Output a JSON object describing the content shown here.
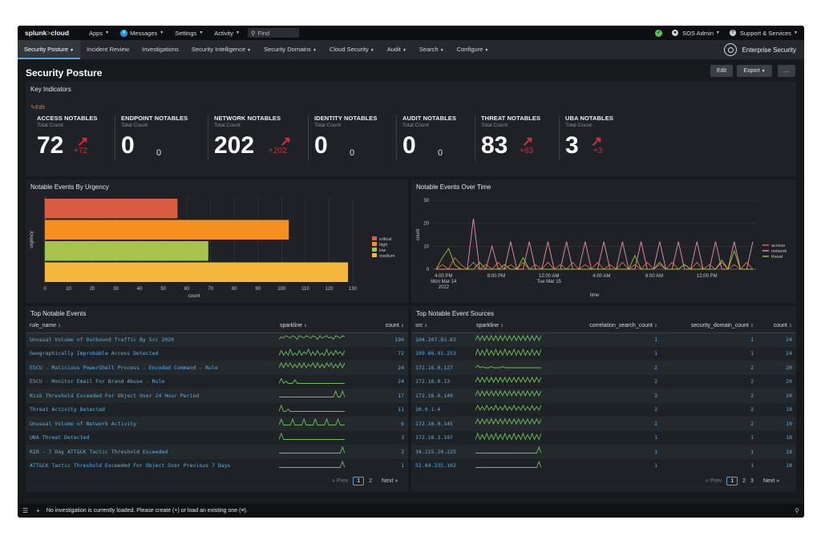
{
  "topbar": {
    "logo_main": "splunk",
    "logo_gt": ">",
    "logo_cloud": "cloud",
    "apps": "Apps",
    "messages_count": "4",
    "messages": "Messages",
    "settings": "Settings",
    "activity": "Activity",
    "find_placeholder": "Find",
    "user": "SOS Admin",
    "support": "Support & Services"
  },
  "nav": {
    "items": [
      "Security Posture",
      "Incident Review",
      "Investigations",
      "Security Intelligence",
      "Security Domains",
      "Cloud Security",
      "Audit",
      "Search",
      "Configure"
    ],
    "brand": "Enterprise Security"
  },
  "page": {
    "title": "Security Posture",
    "edit_button": "Edit",
    "export_button": "Export",
    "more_button": "..."
  },
  "key_indicators": {
    "title": "Key Indicators",
    "edit_link": "Edit",
    "items": [
      {
        "name": "ACCESS NOTABLES",
        "sub": "Total Count",
        "value": "72",
        "delta": "+72",
        "trend": "up"
      },
      {
        "name": "ENDPOINT NOTABLES",
        "sub": "Total Count",
        "value": "0",
        "delta": "0",
        "trend": "none"
      },
      {
        "name": "NETWORK NOTABLES",
        "sub": "Total Count",
        "value": "202",
        "delta": "+202",
        "trend": "up"
      },
      {
        "name": "IDENTITY NOTABLES",
        "sub": "Total Count",
        "value": "0",
        "delta": "0",
        "trend": "none"
      },
      {
        "name": "AUDIT NOTABLES",
        "sub": "Total Count",
        "value": "0",
        "delta": "0",
        "trend": "none"
      },
      {
        "name": "THREAT NOTABLES",
        "sub": "Total Count",
        "value": "83",
        "delta": "+83",
        "trend": "up"
      },
      {
        "name": "UBA NOTABLES",
        "sub": "Total Count",
        "value": "3",
        "delta": "+3",
        "trend": "up"
      }
    ]
  },
  "chart_data": [
    {
      "type": "bar",
      "orientation": "horizontal",
      "title": "Notable Events By Urgency",
      "xlabel": "count",
      "ylabel": "urgency",
      "xlim": [
        0,
        130
      ],
      "xticks": [
        "0",
        "10",
        "20",
        "30",
        "40",
        "50",
        "60",
        "70",
        "80",
        "90",
        "100",
        "110",
        "120",
        "130"
      ],
      "categories": [
        "critical",
        "high",
        "low",
        "medium"
      ],
      "values": [
        56,
        103,
        69,
        128
      ],
      "colors": [
        "#d85d43",
        "#f58f1f",
        "#a7c44d",
        "#f2b73b"
      ],
      "legend": "right",
      "grid": true
    },
    {
      "type": "line",
      "title": "Notable Events Over Time",
      "xlabel": "time",
      "ylabel": "count",
      "ylim": [
        0,
        30
      ],
      "yticks": [
        "0",
        "10",
        "20",
        "30"
      ],
      "xticks": [
        {
          "label": "4:00 PM",
          "sub1": "Mon Mar 14",
          "sub2": "2022",
          "pos": 0.033
        },
        {
          "label": "8:00 PM",
          "sub1": "",
          "sub2": "",
          "pos": 0.196
        },
        {
          "label": "12:00 AM",
          "sub1": "Tue Mar 15",
          "sub2": "",
          "pos": 0.359
        },
        {
          "label": "4:00 AM",
          "sub1": "",
          "sub2": "",
          "pos": 0.522
        },
        {
          "label": "8:00 AM",
          "sub1": "",
          "sub2": "",
          "pos": 0.685
        },
        {
          "label": "12:00 PM",
          "sub1": "",
          "sub2": "",
          "pos": 0.848
        }
      ],
      "legend": "right",
      "series": [
        {
          "name": "access",
          "color": "#e8664a",
          "values": [
            0,
            2,
            0,
            5,
            2,
            0,
            3,
            0,
            2,
            0,
            3,
            0,
            2,
            0,
            3,
            0,
            2,
            0,
            3,
            0,
            2,
            0,
            3,
            0,
            2,
            0,
            3,
            0,
            2,
            0,
            3,
            0,
            2,
            0,
            3,
            0,
            2,
            0,
            3,
            0,
            2,
            0,
            3,
            0,
            2,
            0,
            3,
            0,
            2,
            0,
            3,
            0
          ]
        },
        {
          "name": "network",
          "color": "#f08fa0",
          "values": [
            0,
            0,
            0,
            0,
            0,
            0,
            22,
            0,
            0,
            10,
            0,
            0,
            12,
            0,
            0,
            12,
            0,
            0,
            12,
            0,
            0,
            12,
            0,
            0,
            12,
            0,
            0,
            12,
            0,
            0,
            12,
            0,
            0,
            12,
            0,
            0,
            12,
            0,
            0,
            12,
            0,
            0,
            12,
            0,
            0,
            12,
            0,
            0,
            12,
            0,
            0,
            12
          ]
        },
        {
          "name": "threat",
          "color": "#9bc23c",
          "values": [
            0,
            5,
            9,
            2,
            0,
            0,
            0,
            3,
            0,
            0,
            0,
            2,
            0,
            0,
            5,
            0,
            0,
            0,
            0,
            0,
            0,
            0,
            0,
            0,
            0,
            0,
            0,
            0,
            0,
            0,
            0,
            0,
            6,
            0,
            0,
            0,
            3,
            0,
            0,
            0,
            2,
            0,
            0,
            0,
            0,
            0,
            4,
            0,
            8,
            0,
            0,
            0
          ]
        }
      ]
    }
  ],
  "top_notable_events": {
    "title": "Top Notable Events",
    "columns": [
      "rule_name",
      "sparkline",
      "count"
    ],
    "rows": [
      {
        "rule_name": "Unusual Volume of Outbound Traffic By Src 2020",
        "count": "196",
        "spark": [
          3,
          5,
          4,
          6,
          5,
          4,
          6,
          5,
          3,
          6,
          5,
          4,
          6,
          5,
          4,
          6,
          5,
          3,
          6,
          4,
          5,
          6,
          4,
          5,
          3,
          6,
          5,
          4,
          6,
          5
        ]
      },
      {
        "rule_name": "Geographically Improbable Access Detected",
        "count": "72",
        "spark": [
          1,
          5,
          1,
          4,
          1,
          6,
          1,
          3,
          1,
          5,
          1,
          4,
          2,
          6,
          1,
          4,
          1,
          5,
          1,
          3,
          1,
          6,
          1,
          4,
          1,
          5,
          2,
          4,
          1,
          5
        ]
      },
      {
        "rule_name": "ESCU - Malicious PowerShell Process - Encoded Command - Rule",
        "count": "24",
        "spark": [
          2,
          6,
          2,
          6,
          3,
          6,
          2,
          5,
          2,
          6,
          2,
          6,
          2,
          5,
          3,
          6,
          2,
          6,
          2,
          5,
          2,
          6,
          3,
          6,
          2,
          5,
          2,
          6,
          2,
          6
        ]
      },
      {
        "rule_name": "ESCU - Monitor Email For Brand Abuse - Rule",
        "count": "24",
        "spark": [
          1,
          5,
          1,
          3,
          1,
          1,
          1,
          4,
          1,
          1,
          1,
          1,
          1,
          1,
          1,
          1,
          1,
          1,
          1,
          1,
          1,
          1,
          1,
          1,
          1,
          1,
          1,
          1,
          1,
          1
        ]
      },
      {
        "rule_name": "Risk Threshold Exceeded For Object Over 24 Hour Period",
        "count": "17",
        "spark": [
          1,
          1,
          1,
          1,
          1,
          1,
          1,
          1,
          1,
          1,
          1,
          1,
          1,
          1,
          1,
          1,
          1,
          1,
          1,
          1,
          1,
          1,
          1,
          1,
          1,
          6,
          1,
          1,
          6,
          1
        ]
      },
      {
        "rule_name": "Threat Activity Detected",
        "count": "11",
        "spark": [
          1,
          6,
          1,
          1,
          3,
          1,
          1,
          1,
          1,
          1,
          1,
          1,
          1,
          1,
          1,
          1,
          1,
          1,
          1,
          1,
          1,
          1,
          1,
          1,
          1,
          1,
          1,
          1,
          1,
          1
        ]
      },
      {
        "rule_name": "Unusual Volume of Network Activity",
        "count": "6",
        "spark": [
          1,
          6,
          1,
          1,
          1,
          1,
          6,
          1,
          1,
          1,
          1,
          6,
          1,
          1,
          1,
          1,
          6,
          1,
          1,
          1,
          1,
          6,
          1,
          1,
          1,
          1,
          6,
          1,
          1,
          1
        ]
      },
      {
        "rule_name": "UBA Threat Detected",
        "count": "3",
        "spark": [
          1,
          6,
          1,
          1,
          1,
          1,
          1,
          1,
          1,
          1,
          1,
          1,
          1,
          1,
          1,
          1,
          1,
          1,
          1,
          1,
          1,
          1,
          1,
          1,
          1,
          1,
          1,
          1,
          1,
          1
        ]
      },
      {
        "rule_name": "RIR - 7 Day ATT&CK Tactic Threshold Exceeded",
        "count": "2",
        "spark": [
          1,
          1,
          1,
          1,
          1,
          1,
          1,
          1,
          1,
          1,
          1,
          1,
          1,
          1,
          1,
          1,
          1,
          1,
          1,
          1,
          1,
          1,
          1,
          1,
          1,
          1,
          1,
          1,
          6,
          1
        ]
      },
      {
        "rule_name": "ATT&CK Tactic Threshold Exceeded For Object Over Previous 7 Days",
        "count": "1",
        "spark": [
          1,
          1,
          1,
          1,
          1,
          1,
          1,
          1,
          1,
          1,
          1,
          1,
          1,
          1,
          1,
          1,
          1,
          1,
          1,
          1,
          1,
          1,
          1,
          1,
          1,
          1,
          1,
          1,
          6,
          1
        ]
      }
    ],
    "pager": {
      "prev": "« Prev",
      "pages": [
        "1",
        "2"
      ],
      "current": "1",
      "next": "Next »"
    }
  },
  "top_notable_sources": {
    "title": "Top Notable Event Sources",
    "columns": [
      "src",
      "sparkline",
      "correlation_search_count",
      "security_domain_count",
      "count"
    ],
    "rows": [
      {
        "src": "104.207.83.63",
        "corr": "1",
        "dom": "1",
        "count": "24",
        "spark": [
          2,
          6,
          2,
          6,
          2,
          6,
          2,
          6,
          2,
          6,
          2,
          6,
          2,
          6,
          2,
          6,
          2,
          6,
          2,
          6,
          2,
          6,
          2,
          6,
          2,
          6,
          2,
          6,
          2,
          6
        ]
      },
      {
        "src": "199.66.91.253",
        "corr": "1",
        "dom": "1",
        "count": "24",
        "spark": [
          1,
          6,
          1,
          5,
          1,
          6,
          1,
          5,
          1,
          6,
          1,
          5,
          1,
          6,
          1,
          5,
          1,
          6,
          1,
          5,
          1,
          6,
          1,
          5,
          1,
          6,
          1,
          5,
          1,
          6
        ]
      },
      {
        "src": "172.16.0.127",
        "corr": "2",
        "dom": "2",
        "count": "20",
        "spark": [
          2,
          4,
          2,
          3,
          2,
          2,
          2,
          3,
          2,
          2,
          2,
          2,
          3,
          2,
          2,
          2,
          2,
          2,
          2,
          2,
          2,
          2,
          2,
          2,
          2,
          2,
          2,
          2,
          2,
          2
        ]
      },
      {
        "src": "172.16.0.13",
        "corr": "2",
        "dom": "2",
        "count": "20",
        "spark": [
          2,
          6,
          2,
          6,
          2,
          6,
          2,
          6,
          2,
          6,
          2,
          6,
          2,
          6,
          2,
          6,
          2,
          6,
          2,
          6,
          2,
          6,
          2,
          6,
          2,
          6,
          2,
          6,
          2,
          6
        ]
      },
      {
        "src": "172.16.0.149",
        "corr": "2",
        "dom": "2",
        "count": "20",
        "spark": [
          2,
          6,
          2,
          6,
          2,
          6,
          2,
          6,
          2,
          6,
          2,
          6,
          2,
          6,
          2,
          6,
          2,
          6,
          2,
          6,
          2,
          6,
          2,
          6,
          2,
          6,
          2,
          6,
          2,
          6
        ]
      },
      {
        "src": "10.0.1.4",
        "corr": "2",
        "dom": "2",
        "count": "19",
        "spark": [
          2,
          6,
          2,
          5,
          2,
          6,
          2,
          5,
          2,
          6,
          2,
          5,
          2,
          6,
          2,
          5,
          2,
          6,
          2,
          5,
          2,
          6,
          2,
          5,
          2,
          6,
          2,
          5,
          2,
          6
        ]
      },
      {
        "src": "172.16.0.145",
        "corr": "2",
        "dom": "2",
        "count": "19",
        "spark": [
          2,
          6,
          2,
          6,
          2,
          6,
          2,
          6,
          2,
          6,
          2,
          6,
          2,
          6,
          2,
          6,
          2,
          6,
          2,
          6,
          2,
          6,
          2,
          6,
          2,
          6,
          2,
          6,
          2,
          6
        ]
      },
      {
        "src": "172.16.3.197",
        "corr": "1",
        "dom": "1",
        "count": "18",
        "spark": [
          1,
          6,
          1,
          5,
          1,
          6,
          1,
          5,
          1,
          6,
          1,
          5,
          1,
          6,
          1,
          5,
          1,
          6,
          1,
          5,
          1,
          6,
          1,
          5,
          1,
          6,
          1,
          5,
          1,
          6
        ]
      },
      {
        "src": "34.215.24.225",
        "corr": "1",
        "dom": "1",
        "count": "18",
        "spark": [
          1,
          1,
          1,
          1,
          1,
          1,
          1,
          1,
          1,
          1,
          1,
          1,
          1,
          1,
          1,
          1,
          1,
          1,
          1,
          1,
          1,
          1,
          1,
          1,
          1,
          1,
          1,
          1,
          6,
          1
        ]
      },
      {
        "src": "52.84.235.102",
        "corr": "1",
        "dom": "1",
        "count": "18",
        "spark": [
          1,
          1,
          1,
          1,
          1,
          1,
          1,
          1,
          1,
          1,
          1,
          1,
          1,
          1,
          1,
          1,
          1,
          1,
          1,
          1,
          1,
          1,
          1,
          1,
          1,
          1,
          1,
          1,
          6,
          1
        ]
      }
    ],
    "pager": {
      "prev": "« Prev",
      "pages": [
        "1",
        "2",
        "3"
      ],
      "current": "1",
      "next": "Next »"
    }
  },
  "bottombar": {
    "message": "No investigation is currently loaded. Please create (+) or load an existing one (≡)."
  },
  "colors": {
    "accent": "#5aa0d8",
    "link": "#5fb0e8",
    "spark": "#6cbf5a",
    "alert": "#d0303a"
  }
}
